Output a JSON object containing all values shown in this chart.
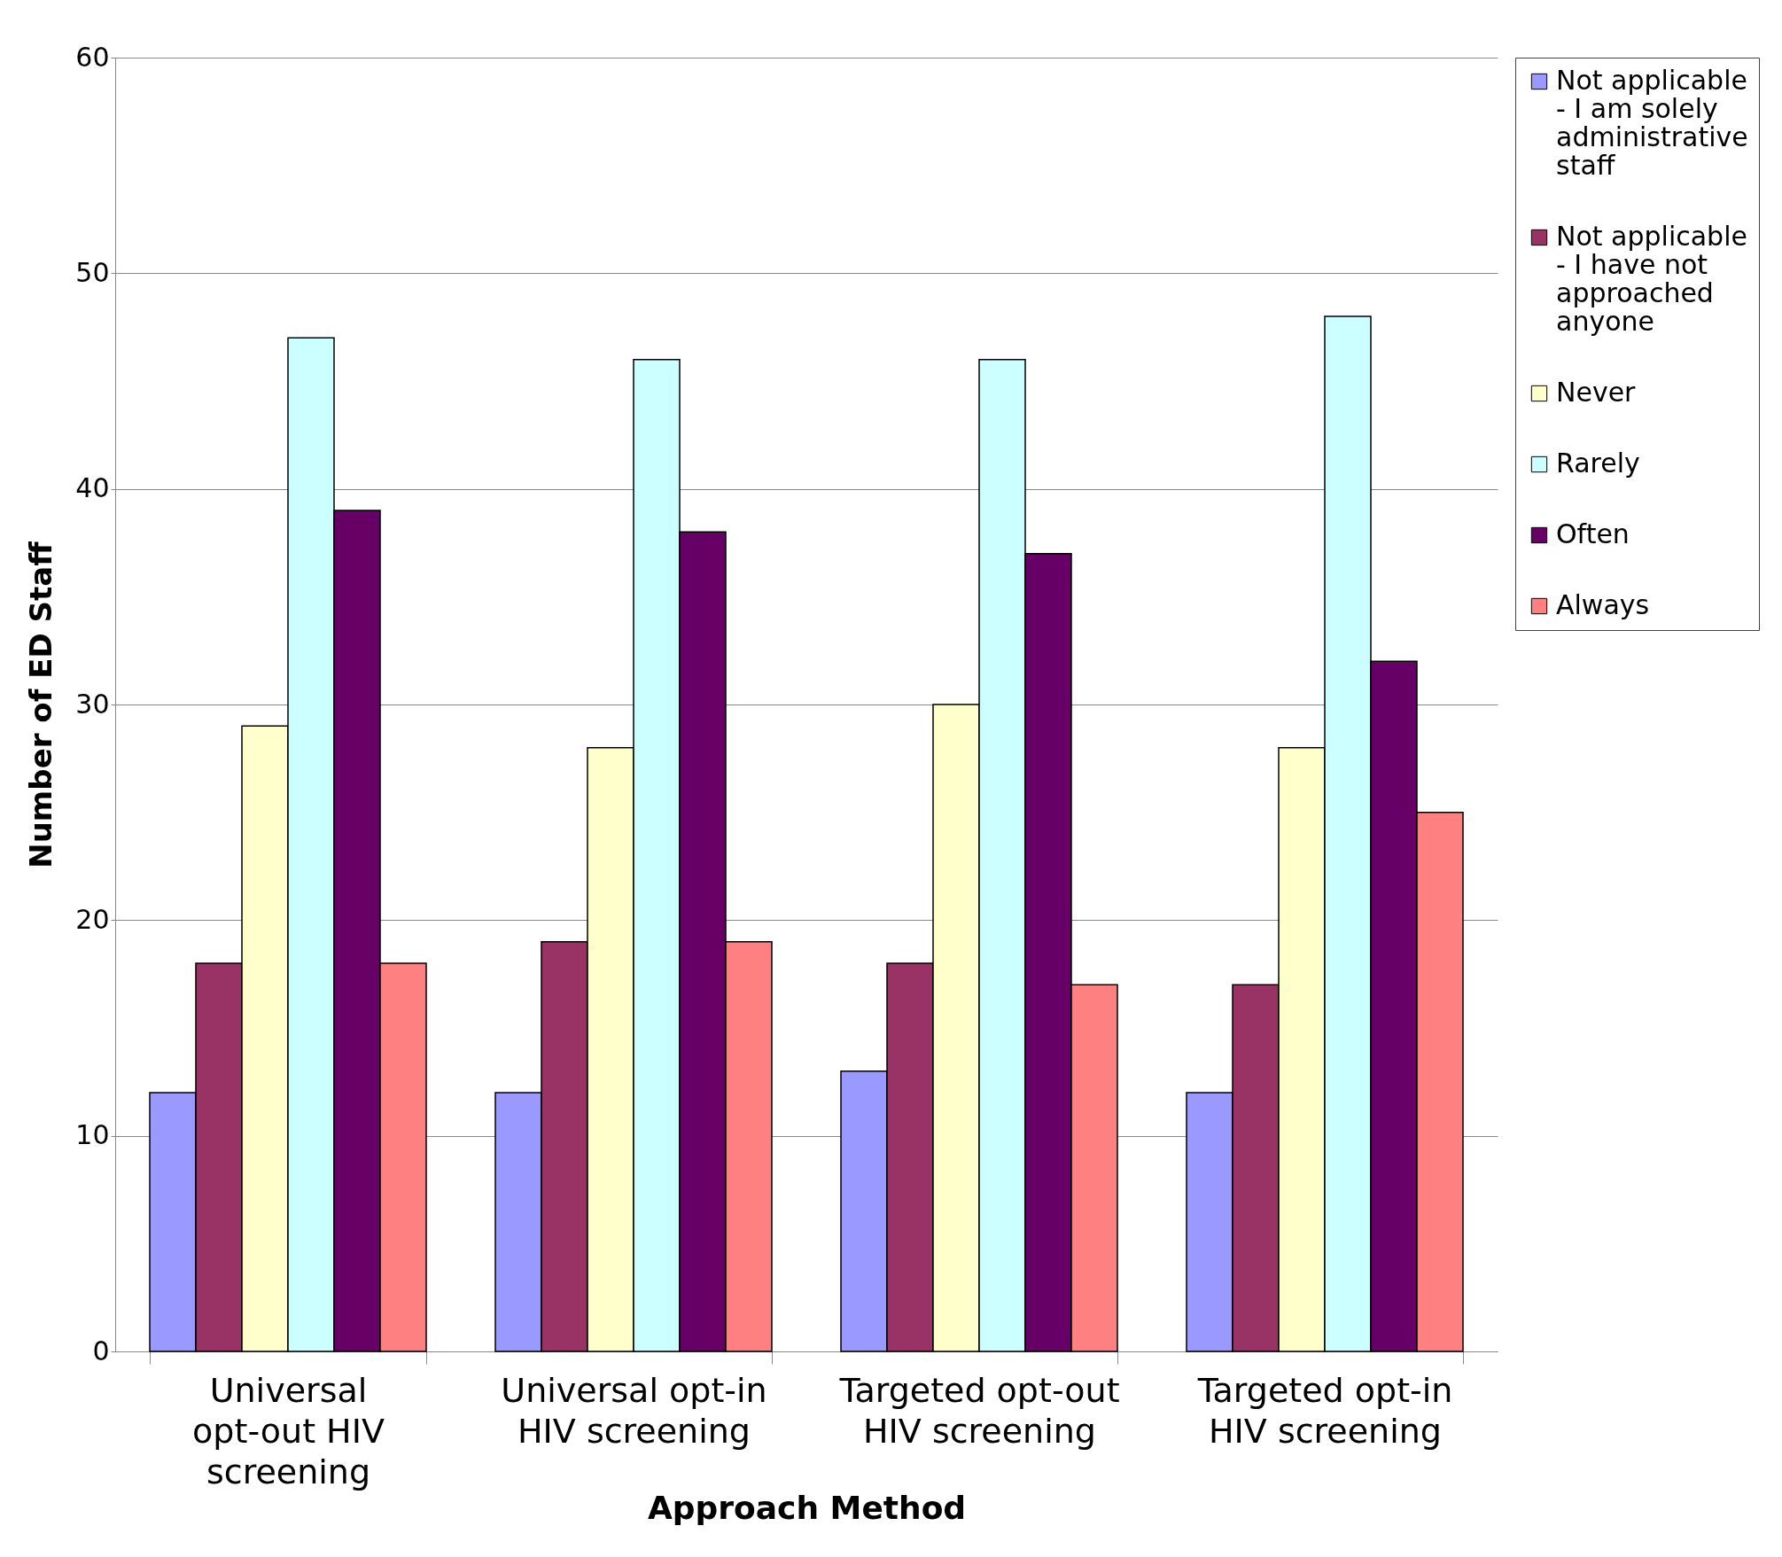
{
  "chart_data": {
    "type": "bar",
    "xlabel": "Approach Method",
    "ylabel": "Number of ED Staff",
    "categories": [
      "Universal opt-out HIV screening",
      "Universal opt-in HIV screening",
      "Targeted opt-out HIV screening",
      "Targeted opt-in HIV screening"
    ],
    "series": [
      {
        "name": "Not applicable - I am solely administrative staff",
        "color": "#9999ff",
        "values": [
          12,
          12,
          13,
          12
        ]
      },
      {
        "name": "Not applicable - I have not approached anyone",
        "color": "#993366",
        "values": [
          18,
          19,
          18,
          17
        ]
      },
      {
        "name": "Never",
        "color": "#ffffcc",
        "values": [
          29,
          28,
          30,
          28
        ]
      },
      {
        "name": "Rarely",
        "color": "#ccffff",
        "values": [
          47,
          46,
          46,
          48
        ]
      },
      {
        "name": "Often",
        "color": "#660066",
        "values": [
          39,
          38,
          37,
          32
        ]
      },
      {
        "name": "Always",
        "color": "#ff8080",
        "values": [
          18,
          19,
          17,
          25
        ]
      }
    ],
    "ylim": [
      0,
      60
    ],
    "yticks": [
      0,
      10,
      20,
      30,
      40,
      50,
      60
    ],
    "grid": "y",
    "legend": "right"
  }
}
